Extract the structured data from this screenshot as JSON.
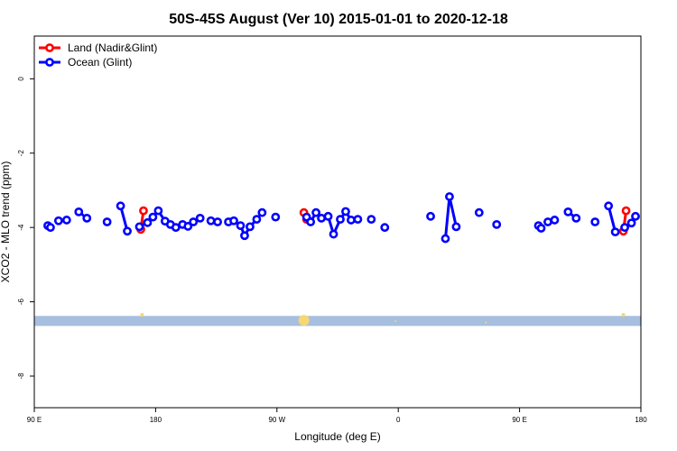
{
  "chart_data": {
    "type": "line",
    "title": "50S-45S August (Ver 10)   2015-01-01 to 2020-12-18",
    "xlabel": "Longitude (deg E)",
    "ylabel": "XCO2 - MLO trend (ppm)",
    "xlim": [
      90,
      540
    ],
    "ylim": [
      -8.85,
      1.15
    ],
    "x_ticks": [
      {
        "value": 90,
        "label": "90 E"
      },
      {
        "value": 180,
        "label": "180"
      },
      {
        "value": 270,
        "label": "90 W"
      },
      {
        "value": 360,
        "label": "0"
      },
      {
        "value": 450,
        "label": "90 E"
      },
      {
        "value": 540,
        "label": "180"
      }
    ],
    "y_ticks": [
      {
        "value": 0,
        "label": "0"
      },
      {
        "value": -2,
        "label": "-2"
      },
      {
        "value": -4,
        "label": "-4"
      },
      {
        "value": -6,
        "label": "-6"
      },
      {
        "value": -8,
        "label": "-8"
      }
    ],
    "grid": false,
    "legend_position": "top-left",
    "series": [
      {
        "name": "Land (Nadir&Glint)",
        "color": "#ff0000",
        "segments": [
          [
            {
              "x": 169,
              "y": -4.05
            },
            {
              "x": 171,
              "y": -3.55
            }
          ],
          [
            {
              "x": 290,
              "y": -3.6
            },
            {
              "x": 292,
              "y": -3.78
            }
          ],
          [
            {
              "x": 527,
              "y": -4.1
            },
            {
              "x": 529,
              "y": -3.55
            }
          ]
        ]
      },
      {
        "name": "Ocean (Glint)",
        "color": "#0000ff",
        "segments": [
          [
            {
              "x": 100,
              "y": -3.95
            },
            {
              "x": 102,
              "y": -4.0
            }
          ],
          [
            {
              "x": 108,
              "y": -3.82
            },
            {
              "x": 114,
              "y": -3.8
            }
          ],
          [
            {
              "x": 123,
              "y": -3.58
            },
            {
              "x": 129,
              "y": -3.75
            }
          ],
          [
            {
              "x": 144,
              "y": -3.85
            }
          ],
          [
            {
              "x": 154,
              "y": -3.42
            },
            {
              "x": 159,
              "y": -4.1
            }
          ],
          [
            {
              "x": 168,
              "y": -3.98
            },
            {
              "x": 174,
              "y": -3.87
            },
            {
              "x": 178,
              "y": -3.72
            },
            {
              "x": 182,
              "y": -3.55
            },
            {
              "x": 187,
              "y": -3.83
            },
            {
              "x": 191,
              "y": -3.92
            },
            {
              "x": 195,
              "y": -4.0
            },
            {
              "x": 200,
              "y": -3.92
            },
            {
              "x": 204,
              "y": -3.97
            },
            {
              "x": 208,
              "y": -3.85
            },
            {
              "x": 213,
              "y": -3.75
            }
          ],
          [
            {
              "x": 221,
              "y": -3.82
            },
            {
              "x": 226,
              "y": -3.85
            }
          ],
          [
            {
              "x": 234,
              "y": -3.85
            },
            {
              "x": 238,
              "y": -3.82
            },
            {
              "x": 243,
              "y": -3.95
            },
            {
              "x": 246,
              "y": -4.22
            },
            {
              "x": 250,
              "y": -3.98
            },
            {
              "x": 255,
              "y": -3.78
            },
            {
              "x": 259,
              "y": -3.6
            }
          ],
          [
            {
              "x": 269,
              "y": -3.72
            }
          ],
          [
            {
              "x": 292,
              "y": -3.72
            },
            {
              "x": 295,
              "y": -3.85
            },
            {
              "x": 299,
              "y": -3.6
            },
            {
              "x": 303,
              "y": -3.75
            },
            {
              "x": 308,
              "y": -3.7
            },
            {
              "x": 312,
              "y": -4.18
            },
            {
              "x": 317,
              "y": -3.78
            },
            {
              "x": 321,
              "y": -3.57
            },
            {
              "x": 325,
              "y": -3.8
            },
            {
              "x": 330,
              "y": -3.78
            }
          ],
          [
            {
              "x": 340,
              "y": -3.78
            }
          ],
          [
            {
              "x": 350,
              "y": -4.0
            }
          ],
          [
            {
              "x": 384,
              "y": -3.7
            }
          ],
          [
            {
              "x": 395,
              "y": -4.3
            },
            {
              "x": 398,
              "y": -3.17
            },
            {
              "x": 403,
              "y": -3.98
            }
          ],
          [
            {
              "x": 420,
              "y": -3.6
            }
          ],
          [
            {
              "x": 433,
              "y": -3.92
            }
          ],
          [
            {
              "x": 464,
              "y": -3.95
            },
            {
              "x": 466,
              "y": -4.02
            }
          ],
          [
            {
              "x": 471,
              "y": -3.85
            },
            {
              "x": 476,
              "y": -3.8
            }
          ],
          [
            {
              "x": 486,
              "y": -3.58
            },
            {
              "x": 492,
              "y": -3.75
            }
          ],
          [
            {
              "x": 506,
              "y": -3.85
            }
          ],
          [
            {
              "x": 516,
              "y": -3.42
            },
            {
              "x": 521,
              "y": -4.12
            }
          ],
          [
            {
              "x": 528,
              "y": -4.0
            },
            {
              "x": 533,
              "y": -3.88
            },
            {
              "x": 536,
              "y": -3.7
            }
          ]
        ]
      }
    ],
    "band": {
      "y_from": -6.65,
      "y_to": -6.38,
      "color": "#a7bfde"
    },
    "band_markers": [
      {
        "x": 170,
        "y": -6.35,
        "size": 1
      },
      {
        "x": 290,
        "y": -6.5,
        "size": 3
      },
      {
        "x": 527,
        "y": -6.35,
        "size": 1
      },
      {
        "x": 358,
        "y": -6.52,
        "size": 0.5
      },
      {
        "x": 425,
        "y": -6.56,
        "size": 0.5
      }
    ],
    "band_marker_color": "#f7d774"
  }
}
